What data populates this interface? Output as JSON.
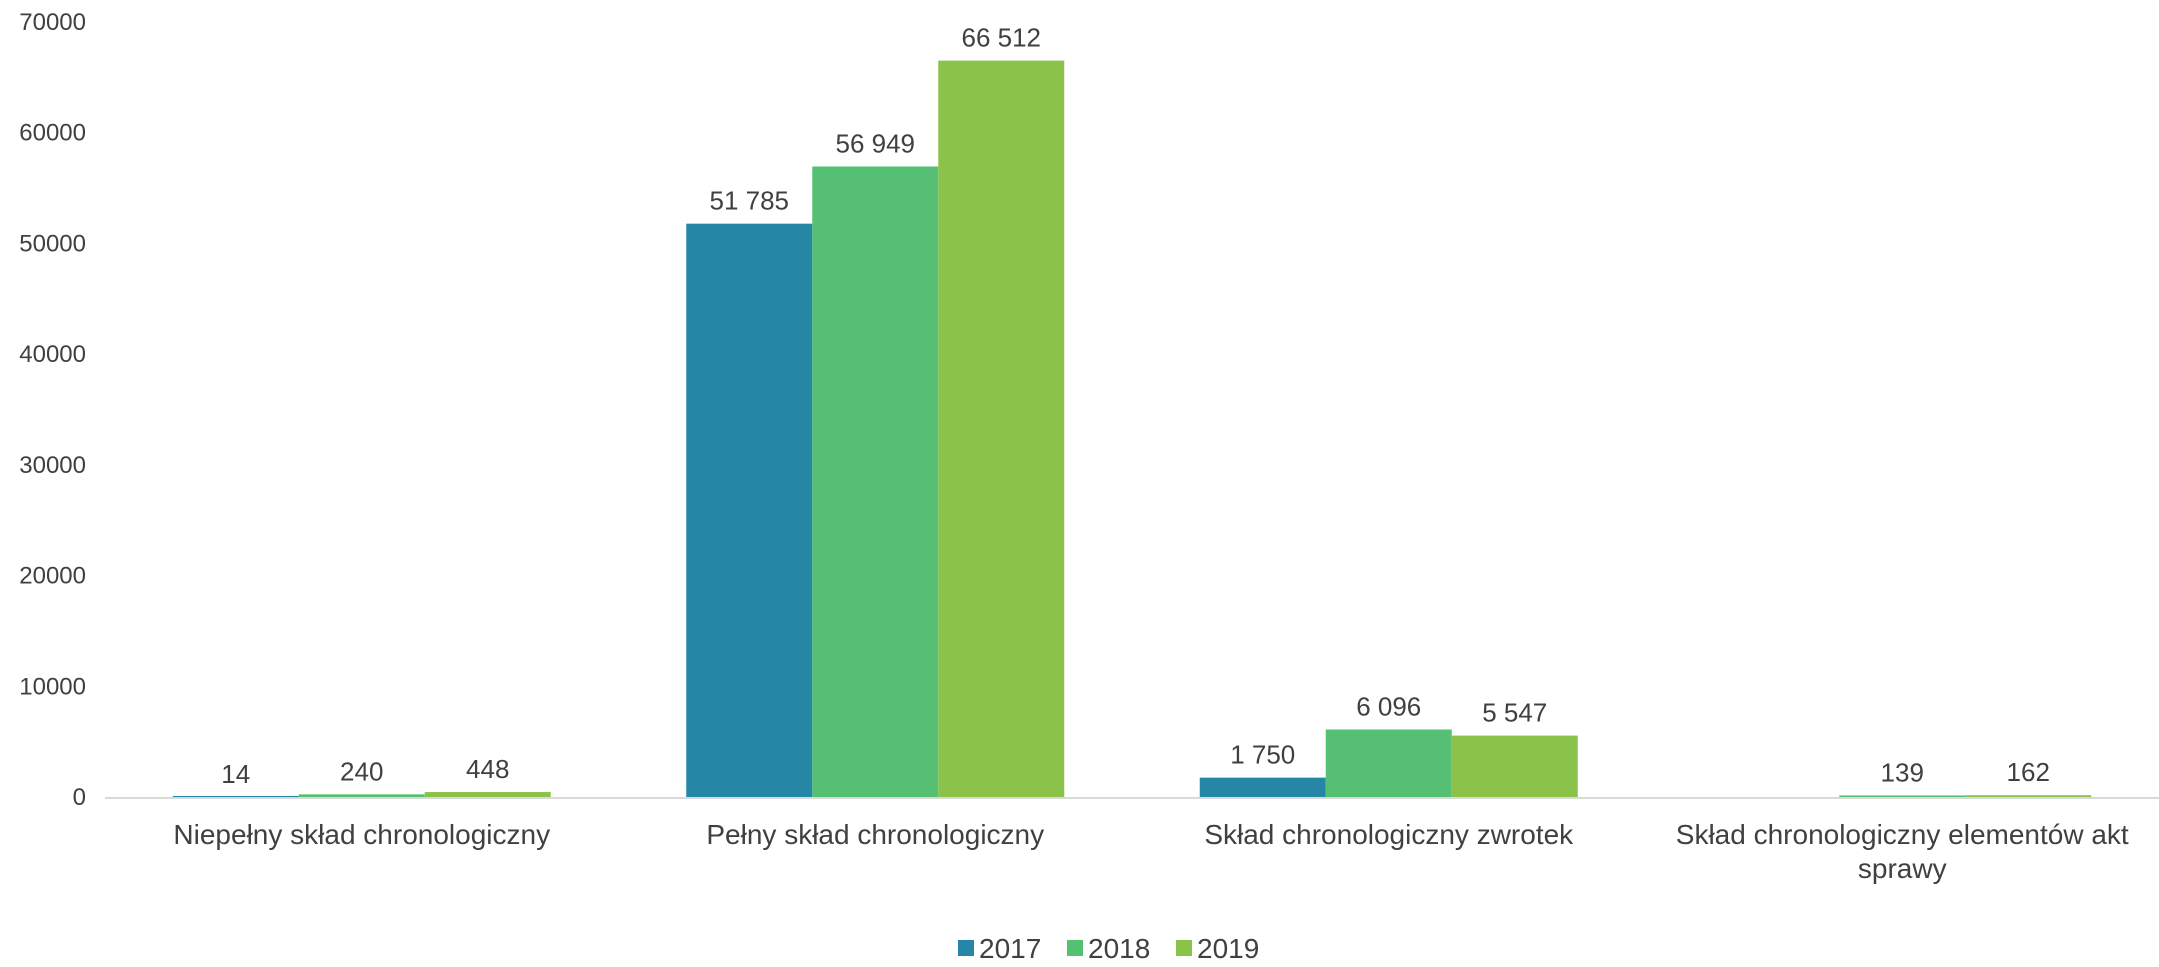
{
  "chart_data": {
    "type": "bar",
    "categories": [
      [
        "Niepełny skład chronologiczny"
      ],
      [
        "Pełny skład chronologiczny"
      ],
      [
        "Skład chronologiczny zwrotek"
      ],
      [
        "Skład chronologiczny elementów akt",
        "sprawy"
      ]
    ],
    "series": [
      {
        "name": "2017",
        "color": "#2686A6",
        "values": [
          14,
          51785,
          1750,
          null
        ],
        "labels": [
          "14",
          "51 785",
          "1 750",
          ""
        ]
      },
      {
        "name": "2018",
        "color": "#55BF73",
        "values": [
          240,
          56949,
          6096,
          139
        ],
        "labels": [
          "240",
          "56 949",
          "6 096",
          "139"
        ]
      },
      {
        "name": "2019",
        "color": "#8BC34A",
        "values": [
          448,
          66512,
          5547,
          162
        ],
        "labels": [
          "448",
          "66 512",
          "5 547",
          "162"
        ]
      }
    ],
    "yticks": [
      "0",
      "10000",
      "20000",
      "30000",
      "40000",
      "50000",
      "60000",
      "70000"
    ],
    "ylim": [
      0,
      70000
    ],
    "grid": false,
    "legend_position": "bottom"
  }
}
